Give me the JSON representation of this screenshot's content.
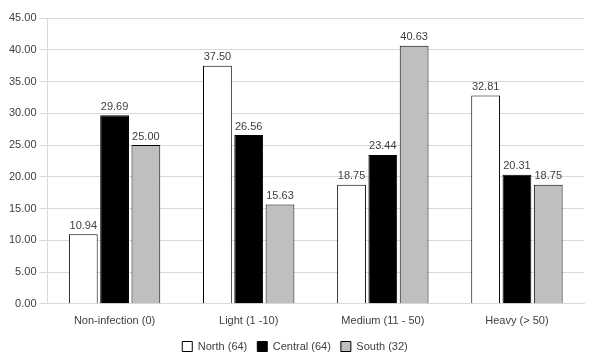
{
  "chart_data": {
    "type": "bar",
    "categories": [
      "Non-infection (0)",
      "Light (1 -10)",
      "Medium (11 - 50)",
      "Heavy (> 50)"
    ],
    "series": [
      {
        "name": "North (64)",
        "color": "#ffffff",
        "values": [
          10.94,
          37.5,
          18.75,
          32.81
        ],
        "value_labels": [
          "10.94",
          "37.50",
          "18.75",
          "32.81"
        ]
      },
      {
        "name": "Central (64)",
        "color": "#000000",
        "values": [
          29.69,
          26.56,
          23.44,
          20.31
        ],
        "value_labels": [
          "29.69",
          "26.56",
          "23.44",
          "20.31"
        ]
      },
      {
        "name": "South (32)",
        "color": "#bfbfbf",
        "values": [
          25.0,
          15.63,
          40.63,
          18.75
        ],
        "value_labels": [
          "25.00",
          "15.63",
          "40.63",
          "18.75"
        ]
      }
    ],
    "ylim": [
      0,
      45
    ],
    "yticks": [
      {
        "value": 0,
        "label": "0.00"
      },
      {
        "value": 5,
        "label": "5.00"
      },
      {
        "value": 10,
        "label": "10.00"
      },
      {
        "value": 15,
        "label": "15.00"
      },
      {
        "value": 20,
        "label": "20.00"
      },
      {
        "value": 25,
        "label": "25.00"
      },
      {
        "value": 30,
        "label": "30.00"
      },
      {
        "value": 35,
        "label": "35.00"
      },
      {
        "value": 40,
        "label": "40.00"
      },
      {
        "value": 45,
        "label": "45.00"
      }
    ],
    "grid": true,
    "legend": "bottom",
    "data_labels": true
  }
}
